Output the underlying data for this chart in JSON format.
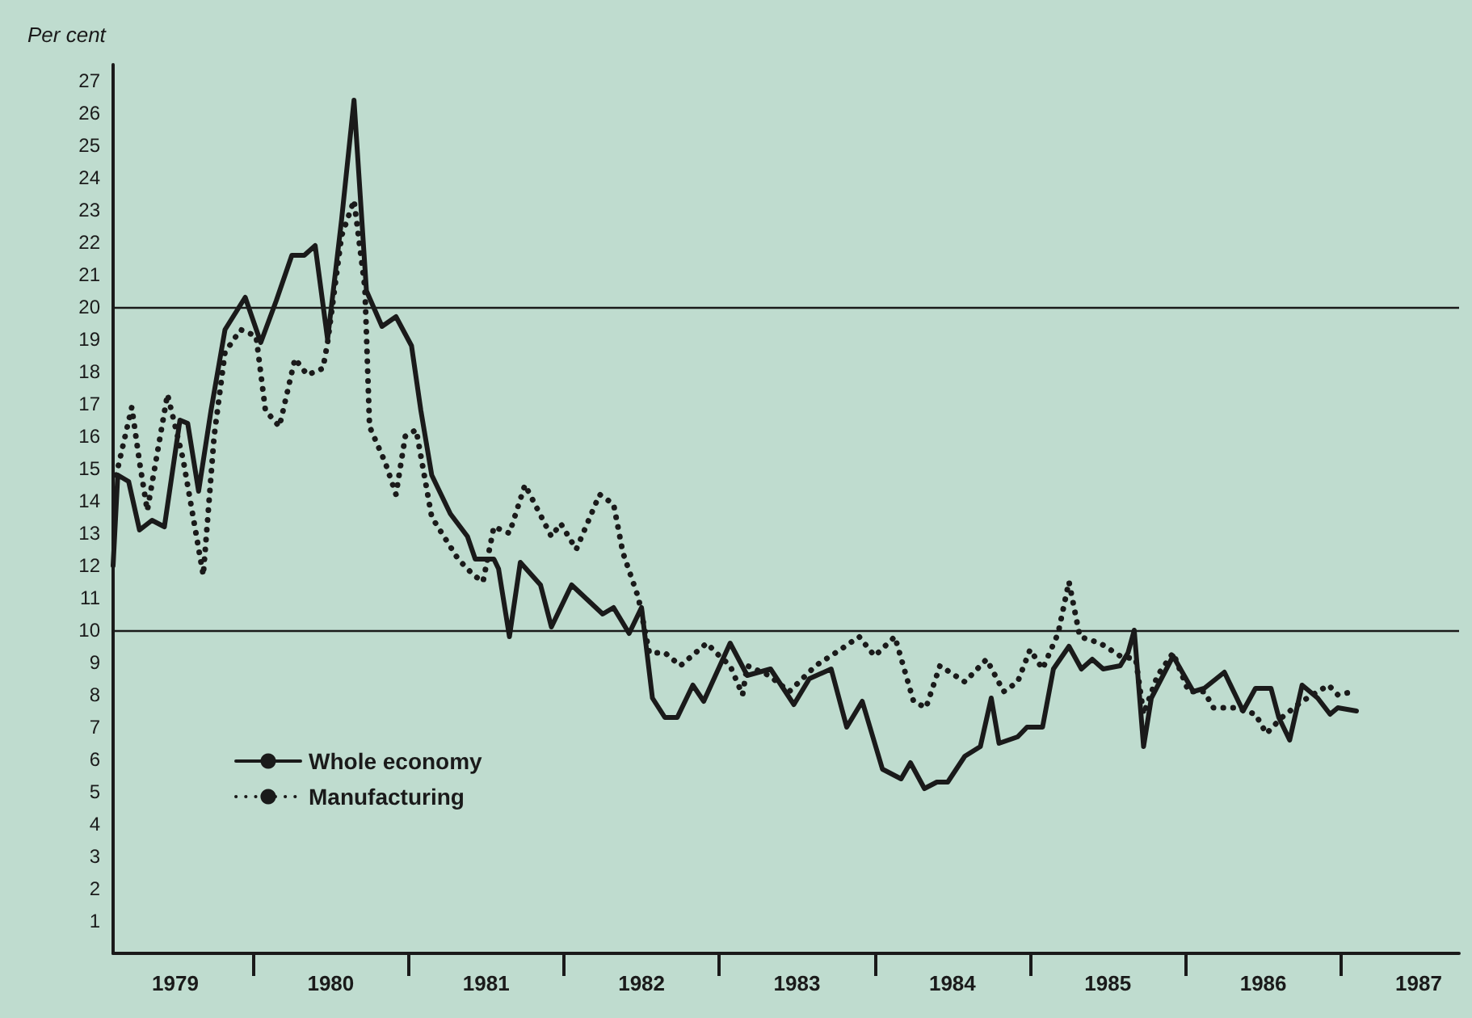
{
  "chart_data": {
    "type": "line",
    "ylabel": "Per cent",
    "xlim": [
      1979.1,
      1987.76
    ],
    "ylim": [
      0,
      27.5
    ],
    "xticks": [
      {
        "value": 1979.5,
        "label": "1979"
      },
      {
        "value": 1980,
        "label": null
      },
      {
        "value": 1980.5,
        "label": "1980"
      },
      {
        "value": 1981,
        "label": null
      },
      {
        "value": 1981.5,
        "label": "1981"
      },
      {
        "value": 1982,
        "label": null
      },
      {
        "value": 1982.5,
        "label": "1982"
      },
      {
        "value": 1983,
        "label": null
      },
      {
        "value": 1983.5,
        "label": "1983"
      },
      {
        "value": 1984,
        "label": null
      },
      {
        "value": 1984.5,
        "label": "1984"
      },
      {
        "value": 1985,
        "label": null
      },
      {
        "value": 1985.5,
        "label": "1985"
      },
      {
        "value": 1986,
        "label": null
      },
      {
        "value": 1986.5,
        "label": "1986"
      },
      {
        "value": 1987,
        "label": null
      },
      {
        "value": 1987.5,
        "label": "1987"
      }
    ],
    "yticks": [
      1,
      2,
      3,
      4,
      5,
      6,
      7,
      8,
      9,
      10,
      11,
      12,
      13,
      14,
      15,
      16,
      17,
      18,
      19,
      20,
      21,
      22,
      23,
      24,
      25,
      26,
      27
    ],
    "grid": false,
    "legend": "bottom left",
    "marker": "none",
    "ref_lines": [
      {
        "axis": "y",
        "value": 10,
        "color": "#1a1a1a"
      },
      {
        "axis": "y",
        "value": 20,
        "color": "#1a1a1a"
      }
    ],
    "series": [
      {
        "name": "Whole economy",
        "color": "#1a1a1a",
        "line_style": "solid",
        "x": [
          1979.1,
          1979.13,
          1979.2,
          1979.27,
          1979.35,
          1979.43,
          1979.53,
          1979.58,
          1979.65,
          1979.73,
          1979.82,
          1979.95,
          1980.05,
          1980.15,
          1980.25,
          1980.33,
          1980.4,
          1980.48,
          1980.57,
          1980.65,
          1980.73,
          1980.83,
          1980.92,
          1981.02,
          1981.08,
          1981.15,
          1981.27,
          1981.38,
          1981.43,
          1981.55,
          1981.58,
          1981.65,
          1981.72,
          1981.85,
          1981.92,
          1982.05,
          1982.25,
          1982.32,
          1982.42,
          1982.5,
          1982.57,
          1982.65,
          1982.73,
          1982.83,
          1982.9,
          1983.07,
          1983.18,
          1983.33,
          1983.48,
          1983.58,
          1983.72,
          1983.82,
          1983.92,
          1984.05,
          1984.17,
          1984.23,
          1984.32,
          1984.4,
          1984.47,
          1984.58,
          1984.68,
          1984.75,
          1984.8,
          1984.92,
          1984.98,
          1985.08,
          1985.15,
          1985.25,
          1985.33,
          1985.4,
          1985.47,
          1985.58,
          1985.63,
          1985.67,
          1985.73,
          1985.78,
          1985.92,
          1986.05,
          1986.12,
          1986.25,
          1986.37,
          1986.45,
          1986.55,
          1986.6,
          1986.67,
          1986.75,
          1986.85,
          1986.93,
          1986.98,
          1987.1
        ],
        "values": [
          12.0,
          14.8,
          14.6,
          13.1,
          13.4,
          13.2,
          16.5,
          16.4,
          14.3,
          16.8,
          19.3,
          20.3,
          18.9,
          20.2,
          21.6,
          21.6,
          21.9,
          19.0,
          22.7,
          26.4,
          20.5,
          19.4,
          19.7,
          18.8,
          16.8,
          14.8,
          13.6,
          12.9,
          12.2,
          12.2,
          11.9,
          9.8,
          12.1,
          11.4,
          10.1,
          11.4,
          10.5,
          10.7,
          9.9,
          10.7,
          7.9,
          7.3,
          7.3,
          8.3,
          7.8,
          9.6,
          8.6,
          8.8,
          7.7,
          8.5,
          8.8,
          7.0,
          7.8,
          5.7,
          5.4,
          5.9,
          5.1,
          5.3,
          5.3,
          6.1,
          6.4,
          7.9,
          6.5,
          6.7,
          7.0,
          7.0,
          8.8,
          9.5,
          8.8,
          9.1,
          8.8,
          8.9,
          9.3,
          10.0,
          6.4,
          7.9,
          9.2,
          8.1,
          8.2,
          8.7,
          7.5,
          8.2,
          8.2,
          7.3,
          6.6,
          8.3,
          7.9,
          7.4,
          7.6,
          7.5
        ]
      },
      {
        "name": "Manufacturing",
        "color": "#1a1a1a",
        "line_style": "dotted",
        "x": [
          1979.12,
          1979.22,
          1979.27,
          1979.32,
          1979.45,
          1979.55,
          1979.68,
          1979.75,
          1979.82,
          1979.92,
          1980.02,
          1980.08,
          1980.17,
          1980.27,
          1980.35,
          1980.45,
          1980.48,
          1980.57,
          1980.65,
          1980.72,
          1980.75,
          1980.85,
          1980.92,
          1980.98,
          1981.05,
          1981.15,
          1981.32,
          1981.42,
          1981.48,
          1981.55,
          1981.65,
          1981.75,
          1981.92,
          1981.98,
          1982.08,
          1982.23,
          1982.32,
          1982.38,
          1982.48,
          1982.55,
          1982.65,
          1982.75,
          1982.92,
          1982.98,
          1983.07,
          1983.15,
          1983.18,
          1983.32,
          1983.45,
          1983.62,
          1983.78,
          1983.9,
          1984.0,
          1984.13,
          1984.25,
          1984.33,
          1984.42,
          1984.58,
          1984.72,
          1984.83,
          1984.92,
          1985.0,
          1985.08,
          1985.18,
          1985.25,
          1985.32,
          1985.45,
          1985.58,
          1985.68,
          1985.73,
          1985.82,
          1985.92,
          1986.02,
          1986.12,
          1986.18,
          1986.32,
          1986.45,
          1986.52,
          1986.62,
          1986.75,
          1986.92,
          1986.98,
          1987.08
        ],
        "values": [
          14.8,
          16.9,
          15.2,
          13.7,
          17.3,
          15.3,
          11.7,
          16.0,
          18.6,
          19.3,
          19.1,
          16.8,
          16.3,
          18.4,
          17.9,
          18.1,
          18.9,
          22.2,
          23.3,
          20.6,
          16.3,
          15.2,
          14.2,
          16.0,
          16.2,
          13.5,
          12.2,
          11.7,
          11.5,
          13.2,
          13.0,
          14.5,
          12.9,
          13.3,
          12.5,
          14.2,
          13.9,
          12.4,
          11.0,
          9.3,
          9.3,
          8.9,
          9.6,
          9.3,
          8.9,
          8.0,
          8.9,
          8.6,
          8.1,
          8.9,
          9.4,
          9.8,
          9.2,
          9.8,
          7.8,
          7.6,
          8.9,
          8.4,
          9.1,
          8.1,
          8.4,
          9.4,
          8.8,
          9.9,
          11.5,
          9.8,
          9.6,
          9.2,
          9.1,
          7.4,
          8.6,
          9.3,
          8.1,
          8.1,
          7.6,
          7.6,
          7.4,
          6.8,
          7.3,
          7.8,
          8.3,
          8.0,
          8.1
        ]
      }
    ]
  }
}
